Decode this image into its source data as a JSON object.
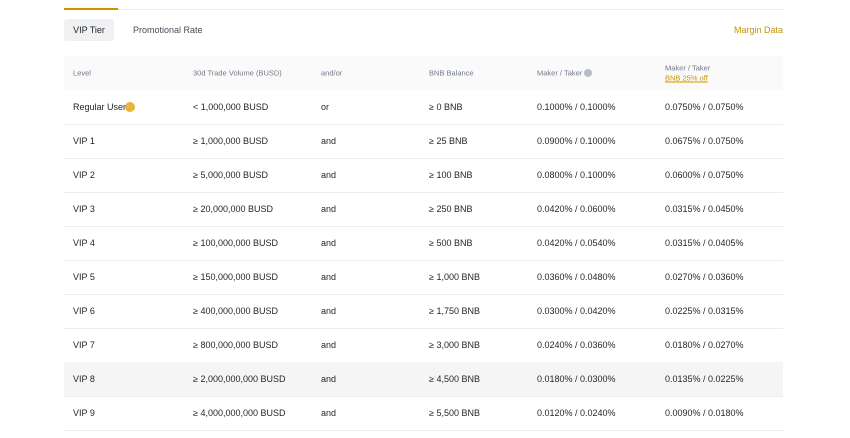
{
  "tabs": [
    "VIP Tier",
    "Promotional Rate"
  ],
  "link": "Margin Data",
  "table": {
    "headers": [
      "Level",
      "30d Trade Volume (BUSD)",
      "and/or",
      "BNB Balance",
      "Maker / Taker",
      "Maker / Taker"
    ],
    "header_note": "BNB 25% off",
    "rows": [
      [
        "Regular User",
        "< 1,000,000 BUSD",
        "or",
        "≥ 0 BNB",
        "0.1000% / 0.1000%",
        "0.0750% / 0.0750%"
      ],
      [
        "VIP 1",
        "≥ 1,000,000 BUSD",
        "and",
        "≥ 25 BNB",
        "0.0900% / 0.1000%",
        "0.0675% / 0.0750%"
      ],
      [
        "VIP 2",
        "≥ 5,000,000 BUSD",
        "and",
        "≥ 100 BNB",
        "0.0800% / 0.1000%",
        "0.0600% / 0.0750%"
      ],
      [
        "VIP 3",
        "≥ 20,000,000 BUSD",
        "and",
        "≥ 250 BNB",
        "0.0420% / 0.0600%",
        "0.0315% / 0.0450%"
      ],
      [
        "VIP 4",
        "≥ 100,000,000 BUSD",
        "and",
        "≥ 500 BNB",
        "0.0420% / 0.0540%",
        "0.0315% / 0.0405%"
      ],
      [
        "VIP 5",
        "≥ 150,000,000 BUSD",
        "and",
        "≥ 1,000 BNB",
        "0.0360% / 0.0480%",
        "0.0270% / 0.0360%"
      ],
      [
        "VIP 6",
        "≥ 400,000,000 BUSD",
        "and",
        "≥ 1,750 BNB",
        "0.0300% / 0.0420%",
        "0.0225% / 0.0315%"
      ],
      [
        "VIP 7",
        "≥ 800,000,000 BUSD",
        "and",
        "≥ 3,000 BNB",
        "0.0240% / 0.0360%",
        "0.0180% / 0.0270%"
      ],
      [
        "VIP 8",
        "≥ 2,000,000,000 BUSD",
        "and",
        "≥ 4,500 BNB",
        "0.0180% / 0.0300%",
        "0.0135% / 0.0225%"
      ],
      [
        "VIP 9",
        "≥ 4,000,000,000 BUSD",
        "and",
        "≥ 5,500 BNB",
        "0.0120% / 0.0240%",
        "0.0090% / 0.0180%"
      ]
    ]
  }
}
